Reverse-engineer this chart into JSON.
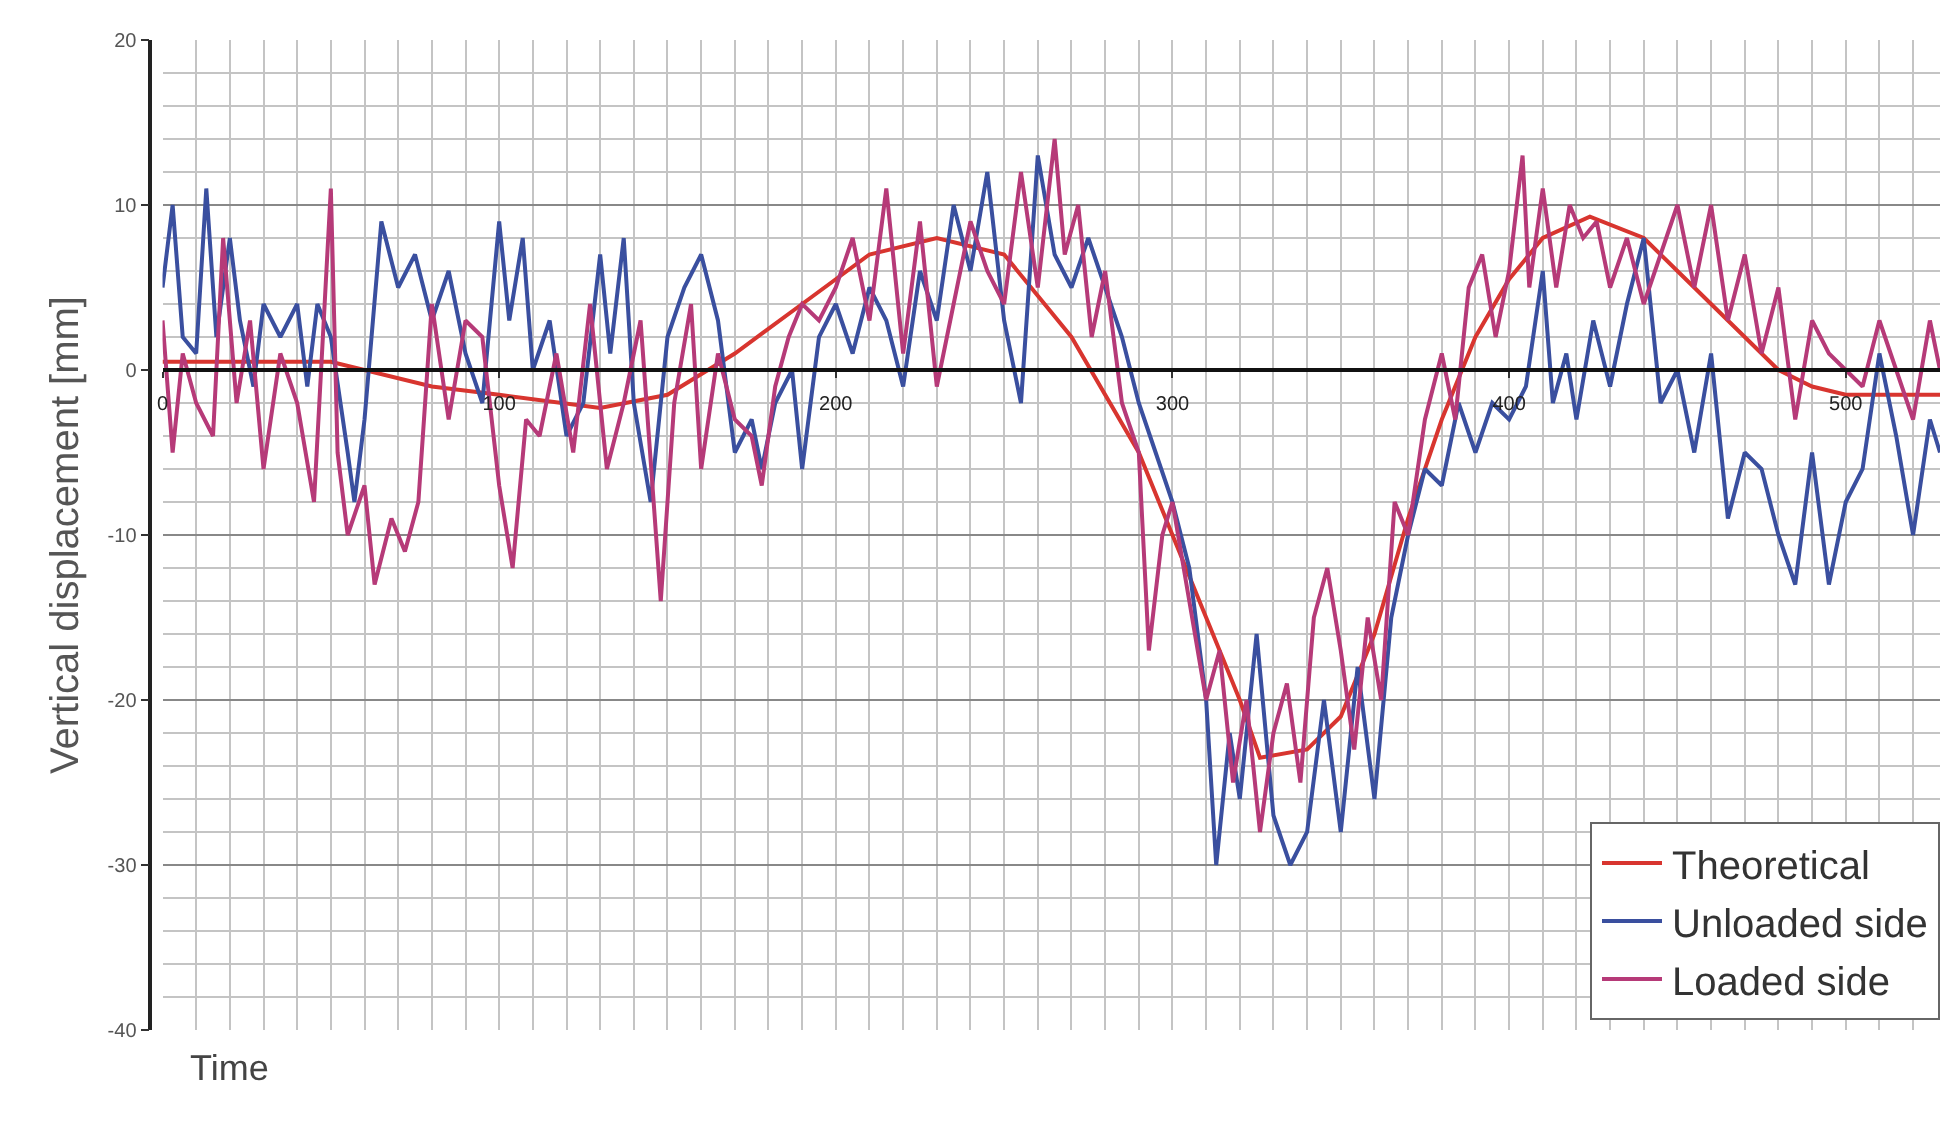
{
  "chart_data": {
    "type": "line",
    "xlabel": "Time",
    "ylabel": "Vertical displacement [mm]",
    "xlim": [
      0,
      528
    ],
    "xticks": [
      0,
      100,
      200,
      300,
      400,
      500
    ],
    "ylim": [
      -40,
      20
    ],
    "yticks": [
      -40,
      -30,
      -20,
      -10,
      0,
      10,
      20
    ],
    "grid": true,
    "legend": "bottom right",
    "marker": "none",
    "line_style": "solid",
    "series": [
      {
        "name": "Theoretical",
        "color": "#d8352f",
        "x": [
          0,
          50,
          80,
          100,
          130,
          150,
          170,
          190,
          210,
          230,
          250,
          270,
          290,
          300,
          310,
          320,
          326,
          340,
          350,
          360,
          370,
          380,
          390,
          400,
          410,
          424,
          440,
          450,
          460,
          470,
          480,
          490,
          500,
          510,
          528
        ],
        "values": [
          0.5,
          0.5,
          -1,
          -1.5,
          -2.3,
          -1.5,
          1,
          4,
          7,
          8,
          7,
          2,
          -5,
          -10,
          -15,
          -20,
          -23.5,
          -23,
          -21,
          -16,
          -9,
          -3,
          2,
          5.5,
          8,
          9.3,
          8,
          6,
          4,
          2,
          0,
          -1,
          -1.5,
          -1.5,
          -1.5
        ]
      },
      {
        "name": "Unloaded side",
        "color": "#3a4f9f",
        "x": [
          0,
          3,
          6,
          10,
          13,
          16,
          20,
          23,
          27,
          30,
          35,
          40,
          43,
          46,
          50,
          55,
          57,
          60,
          65,
          70,
          75,
          80,
          85,
          90,
          95,
          100,
          103,
          107,
          110,
          115,
          120,
          125,
          130,
          133,
          137,
          140,
          145,
          150,
          155,
          160,
          165,
          170,
          175,
          178,
          182,
          187,
          190,
          195,
          200,
          205,
          210,
          215,
          220,
          225,
          230,
          235,
          240,
          245,
          250,
          255,
          260,
          265,
          270,
          275,
          280,
          285,
          290,
          295,
          300,
          305,
          310,
          313,
          317,
          320,
          325,
          330,
          335,
          340,
          345,
          350,
          355,
          360,
          365,
          370,
          375,
          380,
          385,
          390,
          395,
          400,
          405,
          410,
          413,
          417,
          420,
          425,
          430,
          435,
          440,
          445,
          450,
          455,
          460,
          465,
          470,
          475,
          480,
          485,
          490,
          495,
          500,
          505,
          510,
          515,
          520,
          525,
          528
        ],
        "values": [
          5,
          10,
          2,
          1,
          11,
          2,
          8,
          3,
          -1,
          4,
          2,
          4,
          -1,
          4,
          2,
          -5,
          -8,
          -3,
          9,
          5,
          7,
          3,
          6,
          1,
          -2,
          9,
          3,
          8,
          0,
          3,
          -4,
          -2,
          7,
          1,
          8,
          -2,
          -8,
          2,
          5,
          7,
          3,
          -5,
          -3,
          -6,
          -2,
          0,
          -6,
          2,
          4,
          1,
          5,
          3,
          -1,
          6,
          3,
          10,
          6,
          12,
          3,
          -2,
          13,
          7,
          5,
          8,
          5,
          2,
          -2,
          -5,
          -8,
          -12,
          -20,
          -30,
          -22,
          -26,
          -16,
          -27,
          -30,
          -28,
          -20,
          -28,
          -18,
          -26,
          -15,
          -10,
          -6,
          -7,
          -2,
          -5,
          -2,
          -3,
          -1,
          6,
          -2,
          1,
          -3,
          3,
          -1,
          4,
          8,
          -2,
          0,
          -5,
          1,
          -9,
          -5,
          -6,
          -10,
          -13,
          -5,
          -13,
          -8,
          -6,
          1,
          -4,
          -10,
          -3,
          -5
        ]
      },
      {
        "name": "Loaded side",
        "color": "#b63a78",
        "x": [
          0,
          3,
          6,
          10,
          15,
          18,
          22,
          26,
          30,
          35,
          40,
          45,
          50,
          52,
          55,
          60,
          63,
          68,
          72,
          76,
          80,
          85,
          90,
          95,
          100,
          104,
          108,
          112,
          117,
          122,
          127,
          132,
          137,
          142,
          148,
          152,
          157,
          160,
          165,
          170,
          175,
          178,
          182,
          186,
          190,
          195,
          200,
          205,
          210,
          215,
          220,
          225,
          230,
          235,
          240,
          245,
          250,
          255,
          260,
          265,
          268,
          272,
          276,
          280,
          285,
          290,
          293,
          297,
          300,
          305,
          310,
          314,
          318,
          322,
          326,
          330,
          334,
          338,
          342,
          346,
          350,
          354,
          358,
          362,
          366,
          370,
          375,
          380,
          384,
          388,
          392,
          396,
          400,
          404,
          406,
          410,
          414,
          418,
          422,
          426,
          430,
          435,
          440,
          445,
          450,
          455,
          460,
          465,
          470,
          475,
          480,
          485,
          490,
          495,
          500,
          505,
          510,
          515,
          520,
          525,
          528
        ],
        "values": [
          3,
          -5,
          1,
          -2,
          -4,
          8,
          -2,
          3,
          -6,
          1,
          -2,
          -8,
          11,
          -5,
          -10,
          -7,
          -13,
          -9,
          -11,
          -8,
          4,
          -3,
          3,
          2,
          -7,
          -12,
          -3,
          -4,
          1,
          -5,
          4,
          -6,
          -2,
          3,
          -14,
          -2,
          4,
          -6,
          1,
          -3,
          -4,
          -7,
          -1,
          2,
          4,
          3,
          5,
          8,
          3,
          11,
          1,
          9,
          -1,
          4,
          9,
          6,
          4,
          12,
          5,
          14,
          7,
          10,
          2,
          6,
          -2,
          -5,
          -17,
          -10,
          -8,
          -14,
          -20,
          -17,
          -25,
          -20,
          -28,
          -22,
          -19,
          -25,
          -15,
          -12,
          -17,
          -23,
          -15,
          -20,
          -8,
          -10,
          -3,
          1,
          -3,
          5,
          7,
          2,
          6,
          13,
          5,
          11,
          5,
          10,
          8,
          9,
          5,
          8,
          4,
          7,
          10,
          5,
          10,
          3,
          7,
          1,
          5,
          -3,
          3,
          1,
          0,
          -1,
          3,
          0,
          -3,
          3,
          0
        ]
      }
    ]
  }
}
